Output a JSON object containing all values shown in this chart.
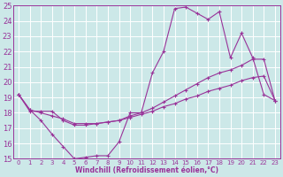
{
  "xlabel": "Windchill (Refroidissement éolien,°C)",
  "xlim": [
    -0.5,
    23.5
  ],
  "ylim": [
    15,
    25
  ],
  "xticks": [
    0,
    1,
    2,
    3,
    4,
    5,
    6,
    7,
    8,
    9,
    10,
    11,
    12,
    13,
    14,
    15,
    16,
    17,
    18,
    19,
    20,
    21,
    22,
    23
  ],
  "yticks": [
    15,
    16,
    17,
    18,
    19,
    20,
    21,
    22,
    23,
    24,
    25
  ],
  "bg_color": "#cce8e8",
  "grid_color": "#aacccc",
  "line_color": "#993399",
  "series": [
    {
      "x": [
        0,
        1,
        2,
        3,
        4,
        5,
        6,
        7,
        8,
        9,
        10,
        11,
        12,
        13,
        14,
        15,
        16,
        17,
        18,
        19,
        20,
        21,
        22,
        23
      ],
      "y": [
        19.2,
        18.2,
        17.5,
        16.6,
        15.8,
        15.0,
        15.1,
        15.2,
        15.2,
        16.1,
        18.0,
        18.0,
        20.6,
        22.0,
        24.8,
        24.9,
        24.5,
        24.1,
        24.6,
        21.6,
        23.2,
        21.6,
        19.2,
        18.8
      ]
    },
    {
      "x": [
        0,
        1,
        2,
        3,
        4,
        5,
        6,
        7,
        8,
        9,
        10,
        11,
        12,
        13,
        14,
        15,
        16,
        17,
        18,
        19,
        20,
        21,
        22,
        23
      ],
      "y": [
        19.2,
        18.1,
        18.1,
        18.1,
        17.5,
        17.2,
        17.2,
        17.3,
        17.4,
        17.5,
        17.8,
        18.0,
        18.3,
        18.7,
        19.1,
        19.5,
        19.9,
        20.3,
        20.6,
        20.8,
        21.1,
        21.5,
        21.5,
        18.8
      ]
    },
    {
      "x": [
        0,
        1,
        2,
        3,
        4,
        5,
        6,
        7,
        8,
        9,
        10,
        11,
        12,
        13,
        14,
        15,
        16,
        17,
        18,
        19,
        20,
        21,
        22,
        23
      ],
      "y": [
        19.2,
        18.2,
        18.0,
        17.8,
        17.6,
        17.3,
        17.3,
        17.3,
        17.4,
        17.5,
        17.7,
        17.9,
        18.1,
        18.4,
        18.6,
        18.9,
        19.1,
        19.4,
        19.6,
        19.8,
        20.1,
        20.3,
        20.4,
        18.8
      ]
    }
  ]
}
